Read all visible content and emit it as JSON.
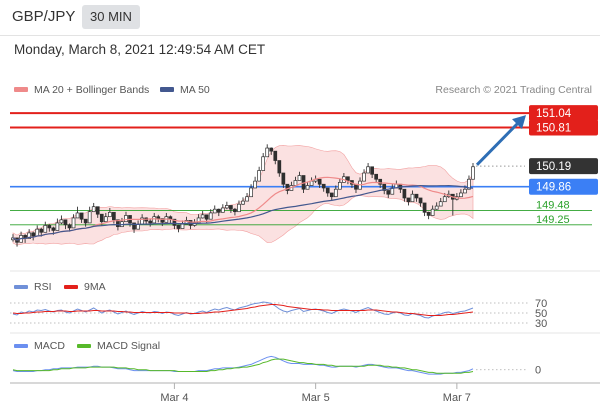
{
  "header": {
    "pair": "GBP/JPY",
    "timeframe": "30 MIN",
    "date": "Monday, March 8, 2021 12:49:54 AM CET"
  },
  "colors": {
    "red": "#e3201b",
    "blue": "#3b7ff5",
    "green": "#2aa12a",
    "arrow": "#2e6eb5",
    "dark": "#333333",
    "candle": "#2f2f2f",
    "band": "#f8c8c8",
    "ma20": "#ef8a8a",
    "ma50": "#43588f",
    "rsi": "#7090d8",
    "macd": "#6b8ff0",
    "signal": "#57b92a"
  },
  "chart_data": [
    {
      "type": "candlestick",
      "title": "",
      "legend": [
        {
          "name": "MA 20 + Bollinger Bands",
          "color": "#ef8a8a"
        },
        {
          "name": "MA 50",
          "color": "#43588f"
        }
      ],
      "credit": "Research © 2021 Trading Central",
      "ylim": [
        148.75,
        151.25
      ],
      "levels": [
        {
          "value": "151.04",
          "color": "#e3201b",
          "kind": "resistance"
        },
        {
          "value": "150.81",
          "color": "#e3201b",
          "kind": "resistance"
        },
        {
          "value": "150.19",
          "color": "#333333",
          "kind": "last"
        },
        {
          "value": "149.86",
          "color": "#3b7ff5",
          "kind": "pivot"
        },
        {
          "value": "149.48",
          "color": "#2aa12a",
          "kind": "support"
        },
        {
          "value": "149.25",
          "color": "#2aa12a",
          "kind": "support"
        }
      ],
      "xticks": [
        "Mar 4",
        "Mar 5",
        "Mar 7"
      ],
      "close": [
        149.04,
        148.97,
        149.08,
        149.03,
        149.12,
        149.07,
        149.18,
        149.13,
        149.24,
        149.2,
        149.16,
        149.28,
        149.33,
        149.25,
        149.2,
        149.36,
        149.44,
        149.34,
        149.28,
        149.46,
        149.54,
        149.42,
        149.3,
        149.38,
        149.45,
        149.33,
        149.22,
        149.3,
        149.4,
        149.28,
        149.18,
        149.26,
        149.36,
        149.31,
        149.28,
        149.38,
        149.35,
        149.29,
        149.38,
        149.34,
        149.24,
        149.19,
        149.26,
        149.32,
        149.24,
        149.28,
        149.36,
        149.41,
        149.34,
        149.44,
        149.5,
        149.45,
        149.52,
        149.56,
        149.5,
        149.46,
        149.58,
        149.63,
        149.7,
        149.84,
        149.95,
        150.12,
        150.34,
        150.48,
        150.43,
        150.28,
        150.08,
        149.9,
        149.8,
        149.88,
        149.96,
        150.04,
        149.82,
        149.88,
        149.95,
        149.98,
        149.9,
        149.84,
        149.76,
        149.7,
        149.82,
        149.93,
        150.02,
        149.96,
        149.9,
        149.82,
        149.95,
        150.08,
        150.18,
        150.06,
        149.98,
        149.9,
        149.8,
        149.74,
        149.84,
        149.9,
        149.82,
        149.68,
        149.62,
        149.74,
        149.68,
        149.6,
        149.45,
        149.4,
        149.5,
        149.55,
        149.62,
        149.7,
        149.74,
        149.66,
        149.7,
        149.76,
        149.82,
        149.98,
        150.18
      ],
      "high": [
        149.1,
        149.04,
        149.14,
        149.1,
        149.18,
        149.14,
        149.24,
        149.2,
        149.3,
        149.26,
        149.22,
        149.35,
        149.4,
        149.32,
        149.27,
        149.42,
        149.54,
        149.4,
        149.34,
        149.54,
        149.6,
        149.48,
        149.36,
        149.44,
        149.52,
        149.4,
        149.28,
        149.36,
        149.46,
        149.34,
        149.24,
        149.32,
        149.42,
        149.37,
        149.34,
        149.44,
        149.41,
        149.35,
        149.44,
        149.4,
        149.3,
        149.25,
        149.32,
        149.38,
        149.3,
        149.34,
        149.42,
        149.47,
        149.4,
        149.5,
        149.56,
        149.51,
        149.58,
        149.62,
        149.56,
        149.52,
        149.64,
        149.69,
        149.76,
        149.9,
        150.02,
        150.18,
        150.4,
        150.54,
        150.49,
        150.34,
        150.14,
        149.96,
        149.86,
        149.94,
        150.02,
        150.1,
        149.88,
        149.94,
        150.01,
        150.04,
        149.96,
        149.9,
        149.82,
        149.76,
        149.88,
        149.99,
        150.08,
        150.02,
        149.96,
        149.88,
        150.01,
        150.14,
        150.24,
        150.12,
        150.04,
        149.96,
        149.86,
        149.8,
        149.9,
        149.96,
        149.88,
        149.74,
        149.68,
        149.8,
        149.74,
        149.66,
        149.51,
        149.46,
        149.56,
        149.61,
        149.68,
        149.76,
        149.8,
        149.72,
        149.76,
        149.82,
        149.88,
        150.04,
        150.24
      ],
      "low": [
        148.98,
        148.9,
        149.02,
        148.96,
        149.06,
        149.0,
        149.12,
        149.06,
        149.18,
        149.14,
        149.09,
        149.22,
        149.26,
        149.18,
        149.14,
        149.3,
        149.38,
        149.28,
        149.22,
        149.4,
        149.48,
        149.36,
        149.24,
        149.32,
        149.39,
        149.27,
        149.16,
        149.24,
        149.34,
        149.22,
        149.12,
        149.2,
        149.3,
        149.25,
        149.22,
        149.32,
        149.29,
        149.23,
        149.32,
        149.28,
        149.18,
        149.13,
        149.2,
        149.26,
        149.18,
        149.22,
        149.3,
        149.35,
        149.28,
        149.38,
        149.44,
        149.39,
        149.46,
        149.5,
        149.44,
        149.4,
        149.52,
        149.57,
        149.64,
        149.78,
        149.89,
        150.06,
        150.28,
        150.42,
        150.37,
        150.22,
        150.02,
        149.84,
        149.74,
        149.82,
        149.9,
        149.98,
        149.76,
        149.82,
        149.89,
        149.92,
        149.84,
        149.78,
        149.7,
        149.64,
        149.76,
        149.87,
        149.96,
        149.9,
        149.84,
        149.76,
        149.89,
        150.02,
        150.12,
        150.0,
        149.92,
        149.84,
        149.74,
        149.68,
        149.78,
        149.84,
        149.76,
        149.62,
        149.56,
        149.68,
        149.62,
        149.54,
        149.39,
        149.34,
        149.44,
        149.49,
        149.56,
        149.64,
        149.68,
        149.4,
        149.64,
        149.7,
        149.76,
        149.92,
        150.12
      ]
    },
    {
      "type": "line",
      "title": "",
      "series": [
        {
          "name": "RSI",
          "color": "#7090d8"
        },
        {
          "name": "9MA",
          "color": "#e3201b"
        }
      ],
      "yticks": [
        "70",
        "50",
        "30"
      ],
      "ylim": [
        20,
        80
      ],
      "values_rsi": [
        48,
        46,
        52,
        50,
        54,
        52,
        56,
        55,
        57,
        54,
        52,
        55,
        56,
        52,
        50,
        54,
        58,
        55,
        52,
        56,
        60,
        55,
        50,
        54,
        56,
        52,
        48,
        51,
        54,
        50,
        47,
        50,
        53,
        51,
        50,
        53,
        52,
        49,
        52,
        51,
        47,
        45,
        48,
        51,
        48,
        49,
        52,
        54,
        51,
        55,
        58,
        56,
        59,
        61,
        58,
        56,
        60,
        62,
        64,
        67,
        69,
        70,
        72,
        71,
        69,
        64,
        58,
        54,
        52,
        55,
        57,
        59,
        53,
        55,
        57,
        58,
        56,
        54,
        51,
        49,
        53,
        56,
        58,
        56,
        54,
        51,
        55,
        58,
        61,
        57,
        54,
        51,
        48,
        47,
        50,
        52,
        50,
        46,
        45,
        49,
        47,
        45,
        41,
        40,
        44,
        46,
        48,
        51,
        52,
        49,
        51,
        53,
        54,
        57,
        60
      ],
      "values_9ma": [
        50,
        49,
        49,
        50,
        50,
        51,
        52,
        52,
        53,
        53,
        53,
        54,
        54,
        54,
        53,
        53,
        54,
        54,
        54,
        54,
        55,
        55,
        54,
        54,
        54,
        54,
        53,
        53,
        52,
        52,
        51,
        51,
        51,
        51,
        51,
        51,
        51,
        51,
        51,
        51,
        50,
        50,
        50,
        50,
        49,
        49,
        49,
        50,
        50,
        51,
        52,
        52,
        53,
        54,
        55,
        56,
        57,
        58,
        59,
        61,
        62,
        64,
        65,
        66,
        67,
        67,
        66,
        65,
        63,
        62,
        61,
        60,
        59,
        58,
        57,
        57,
        57,
        56,
        56,
        55,
        55,
        55,
        55,
        55,
        55,
        55,
        55,
        55,
        56,
        56,
        56,
        55,
        54,
        53,
        52,
        52,
        51,
        50,
        49,
        49,
        48,
        47,
        46,
        45,
        45,
        45,
        45,
        46,
        47,
        47,
        48,
        49,
        50,
        51,
        52
      ]
    },
    {
      "type": "line",
      "title": "",
      "series": [
        {
          "name": "MACD",
          "color": "#6b8ff0"
        },
        {
          "name": "MACD Signal",
          "color": "#57b92a"
        }
      ],
      "yticks": [
        "0"
      ],
      "ylim": [
        -0.15,
        0.2
      ],
      "values_macd": [
        -0.01,
        -0.02,
        -0.02,
        -0.02,
        -0.02,
        -0.02,
        -0.01,
        -0.01,
        0.0,
        0.0,
        0.01,
        0.01,
        0.02,
        0.02,
        0.02,
        0.02,
        0.03,
        0.03,
        0.03,
        0.03,
        0.04,
        0.04,
        0.03,
        0.03,
        0.03,
        0.02,
        0.01,
        0.01,
        0.01,
        0.0,
        -0.01,
        -0.01,
        -0.01,
        -0.01,
        -0.01,
        -0.01,
        -0.01,
        -0.01,
        -0.01,
        -0.01,
        -0.02,
        -0.02,
        -0.02,
        -0.02,
        -0.02,
        -0.02,
        -0.01,
        -0.01,
        -0.01,
        0.0,
        0.01,
        0.01,
        0.02,
        0.02,
        0.02,
        0.02,
        0.03,
        0.04,
        0.05,
        0.06,
        0.08,
        0.1,
        0.12,
        0.14,
        0.15,
        0.14,
        0.12,
        0.1,
        0.08,
        0.07,
        0.07,
        0.07,
        0.06,
        0.06,
        0.06,
        0.06,
        0.05,
        0.05,
        0.04,
        0.03,
        0.03,
        0.04,
        0.04,
        0.04,
        0.04,
        0.03,
        0.04,
        0.05,
        0.06,
        0.06,
        0.05,
        0.04,
        0.03,
        0.02,
        0.02,
        0.02,
        0.01,
        0.0,
        -0.01,
        -0.01,
        -0.02,
        -0.03,
        -0.04,
        -0.05,
        -0.05,
        -0.05,
        -0.05,
        -0.04,
        -0.04,
        -0.04,
        -0.03,
        -0.03,
        -0.02,
        -0.01,
        0.01
      ],
      "values_signal": [
        0.0,
        -0.01,
        -0.01,
        -0.01,
        -0.01,
        -0.01,
        -0.01,
        -0.01,
        -0.01,
        -0.01,
        0.0,
        0.0,
        0.01,
        0.01,
        0.01,
        0.02,
        0.02,
        0.02,
        0.02,
        0.03,
        0.03,
        0.03,
        0.03,
        0.03,
        0.03,
        0.03,
        0.02,
        0.02,
        0.02,
        0.01,
        0.01,
        0.0,
        0.0,
        0.0,
        -0.01,
        -0.01,
        -0.01,
        -0.01,
        -0.01,
        -0.01,
        -0.01,
        -0.02,
        -0.02,
        -0.02,
        -0.02,
        -0.02,
        -0.02,
        -0.02,
        -0.02,
        -0.01,
        -0.01,
        0.0,
        0.0,
        0.01,
        0.01,
        0.02,
        0.02,
        0.03,
        0.03,
        0.04,
        0.05,
        0.06,
        0.08,
        0.09,
        0.11,
        0.12,
        0.12,
        0.12,
        0.11,
        0.1,
        0.09,
        0.08,
        0.08,
        0.07,
        0.07,
        0.06,
        0.06,
        0.06,
        0.05,
        0.05,
        0.04,
        0.04,
        0.04,
        0.04,
        0.04,
        0.04,
        0.04,
        0.04,
        0.05,
        0.05,
        0.05,
        0.05,
        0.04,
        0.04,
        0.03,
        0.03,
        0.02,
        0.02,
        0.01,
        0.0,
        0.0,
        -0.01,
        -0.02,
        -0.03,
        -0.03,
        -0.04,
        -0.04,
        -0.04,
        -0.04,
        -0.04,
        -0.04,
        -0.04,
        -0.03,
        -0.03,
        -0.02
      ]
    }
  ]
}
